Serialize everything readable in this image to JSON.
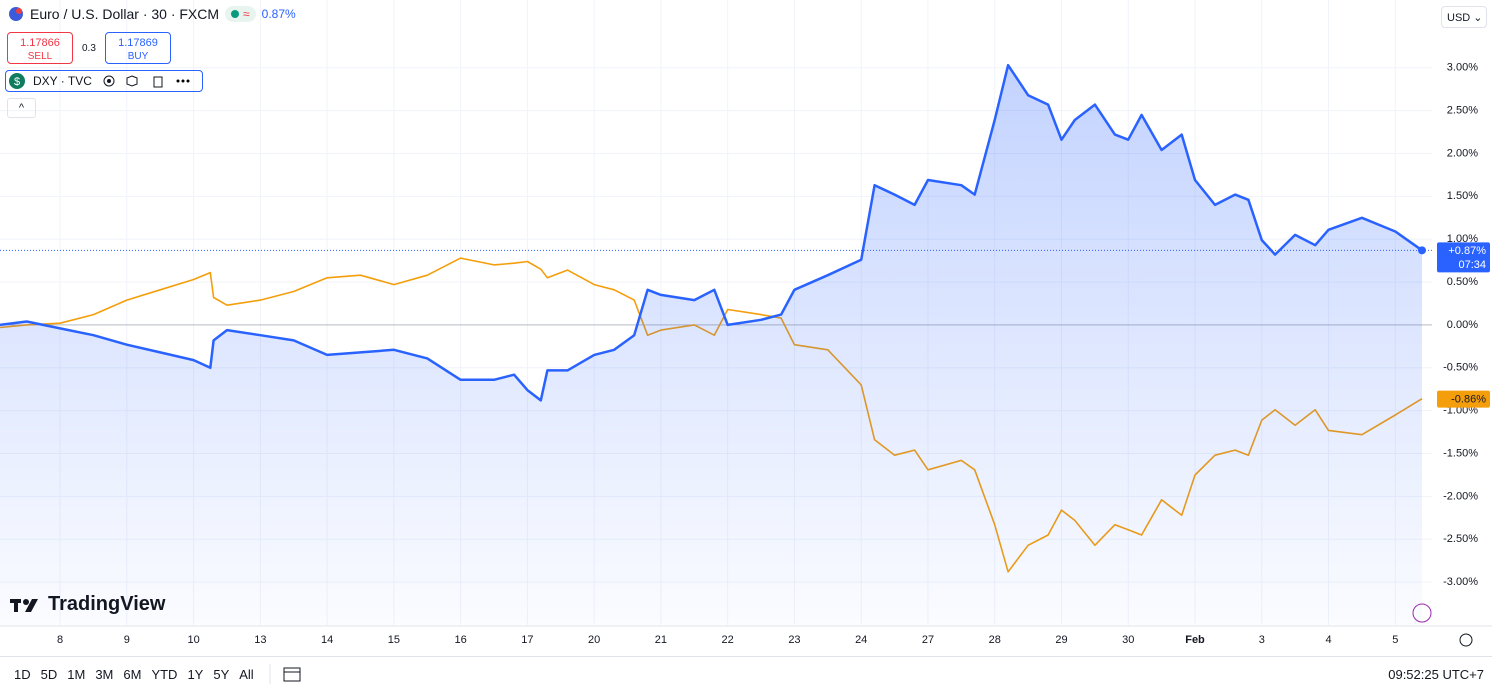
{
  "header": {
    "change": "0.87%",
    "sell_price": "1.17866",
    "sell": "SELL",
    "spread": "0.3",
    "buy_price": "1.17869",
    "buy": "BUY"
  },
  "currency": "USD",
  "brand": "TradingView",
  "toolbar": {
    "ranges": [
      "1D",
      "5D",
      "1M",
      "3M",
      "6M",
      "YTD",
      "1Y",
      "5Y",
      "All"
    ],
    "clock": "09:52:25 UTC+7"
  },
  "chart_data": {
    "type": "line",
    "x": [
      -0.9,
      -0.5,
      0,
      0.5,
      1,
      1.5,
      2,
      2.25,
      2.3,
      2.5,
      3,
      3.5,
      4,
      4.5,
      5,
      5.5,
      6,
      6.5,
      6.8,
      7,
      7.2,
      7.3,
      7.6,
      8,
      8.3,
      8.6,
      8.8,
      9,
      9.5,
      9.8,
      10,
      10.5,
      10.8,
      11,
      11.5,
      12,
      12.2,
      12.5,
      12.8,
      13,
      13.5,
      13.7,
      14,
      14.2,
      14.5,
      14.8,
      15,
      15.2,
      15.5,
      15.8,
      16,
      16.2,
      16.5,
      16.8,
      17,
      17.3,
      17.6,
      17.8,
      18,
      18.2,
      18.5,
      18.8,
      19,
      19.5,
      20,
      20.4
    ],
    "xlim": [
      -0.9,
      20.55
    ],
    "xticks": [
      {
        "value": 0,
        "label": "8"
      },
      {
        "value": 1,
        "label": "9"
      },
      {
        "value": 2,
        "label": "10"
      },
      {
        "value": 3,
        "label": "13"
      },
      {
        "value": 4,
        "label": "14"
      },
      {
        "value": 5,
        "label": "15"
      },
      {
        "value": 6,
        "label": "16"
      },
      {
        "value": 7,
        "label": "17"
      },
      {
        "value": 8,
        "label": "20"
      },
      {
        "value": 9,
        "label": "21"
      },
      {
        "value": 10,
        "label": "22"
      },
      {
        "value": 11,
        "label": "23"
      },
      {
        "value": 12,
        "label": "24"
      },
      {
        "value": 13,
        "label": "27"
      },
      {
        "value": 14,
        "label": "28"
      },
      {
        "value": 15,
        "label": "29"
      },
      {
        "value": 16,
        "label": "30"
      },
      {
        "value": 17,
        "label": "Feb"
      },
      {
        "value": 18,
        "label": "3"
      },
      {
        "value": 19,
        "label": "4"
      },
      {
        "value": 20,
        "label": "5"
      }
    ],
    "ylim": [
      -3.5,
      3.79
    ],
    "yticks": [
      {
        "value": -3,
        "label": "-3.00%"
      },
      {
        "value": -2.5,
        "label": "-2.50%"
      },
      {
        "value": -2,
        "label": "-2.00%"
      },
      {
        "value": -1.5,
        "label": "-1.50%"
      },
      {
        "value": -1,
        "label": "-1.00%"
      },
      {
        "value": -0.5,
        "label": "-0.50%"
      },
      {
        "value": 0,
        "label": "0.00%"
      },
      {
        "value": 0.5,
        "label": "0.50%"
      },
      {
        "value": 1,
        "label": "1.00%"
      },
      {
        "value": 1.5,
        "label": "1.50%"
      },
      {
        "value": 2,
        "label": "2.00%"
      },
      {
        "value": 2.5,
        "label": "2.50%"
      },
      {
        "value": 3,
        "label": "3.00%"
      }
    ],
    "grid": true,
    "series": [
      {
        "name": "Euro / U.S. Dollar · 30 · FXCM",
        "color": "#2962ff",
        "area": true,
        "last_label": "+0.87%",
        "countdown": "07:34",
        "values": [
          0,
          0.04,
          -0.04,
          -0.12,
          -0.23,
          -0.32,
          -0.41,
          -0.5,
          -0.18,
          -0.06,
          -0.12,
          -0.18,
          -0.35,
          -0.32,
          -0.29,
          -0.39,
          -0.64,
          -0.64,
          -0.58,
          -0.76,
          -0.88,
          -0.53,
          -0.53,
          -0.35,
          -0.29,
          -0.12,
          0.41,
          0.35,
          0.29,
          0.41,
          0,
          0.06,
          0.12,
          0.41,
          0.58,
          0.76,
          1.63,
          1.52,
          1.4,
          1.69,
          1.63,
          1.52,
          2.39,
          3.03,
          2.68,
          2.57,
          2.16,
          2.39,
          2.57,
          2.22,
          2.16,
          2.45,
          2.04,
          2.22,
          1.69,
          1.4,
          1.52,
          1.46,
          0.99,
          0.82,
          1.05,
          0.93,
          1.11,
          1.25,
          1.09,
          0.87
        ]
      },
      {
        "name": "DXY · TVC",
        "color": "#f59e0b",
        "area": false,
        "last_label": "-0.86%",
        "values": [
          -0.03,
          0,
          0.02,
          0.12,
          0.29,
          0.41,
          0.53,
          0.61,
          0.32,
          0.23,
          0.29,
          0.39,
          0.55,
          0.58,
          0.47,
          0.58,
          0.78,
          0.7,
          0.72,
          0.74,
          0.65,
          0.55,
          0.64,
          0.47,
          0.41,
          0.29,
          -0.12,
          -0.06,
          0,
          -0.12,
          0.18,
          0.12,
          0.08,
          -0.23,
          -0.29,
          -0.7,
          -1.34,
          -1.52,
          -1.46,
          -1.69,
          -1.58,
          -1.69,
          -2.33,
          -2.88,
          -2.57,
          -2.45,
          -2.16,
          -2.28,
          -2.57,
          -2.33,
          -2.39,
          -2.45,
          -2.04,
          -2.22,
          -1.75,
          -1.52,
          -1.46,
          -1.52,
          -1.11,
          -0.99,
          -1.17,
          -0.99,
          -1.23,
          -1.28,
          -1.05,
          -0.86
        ]
      }
    ]
  }
}
